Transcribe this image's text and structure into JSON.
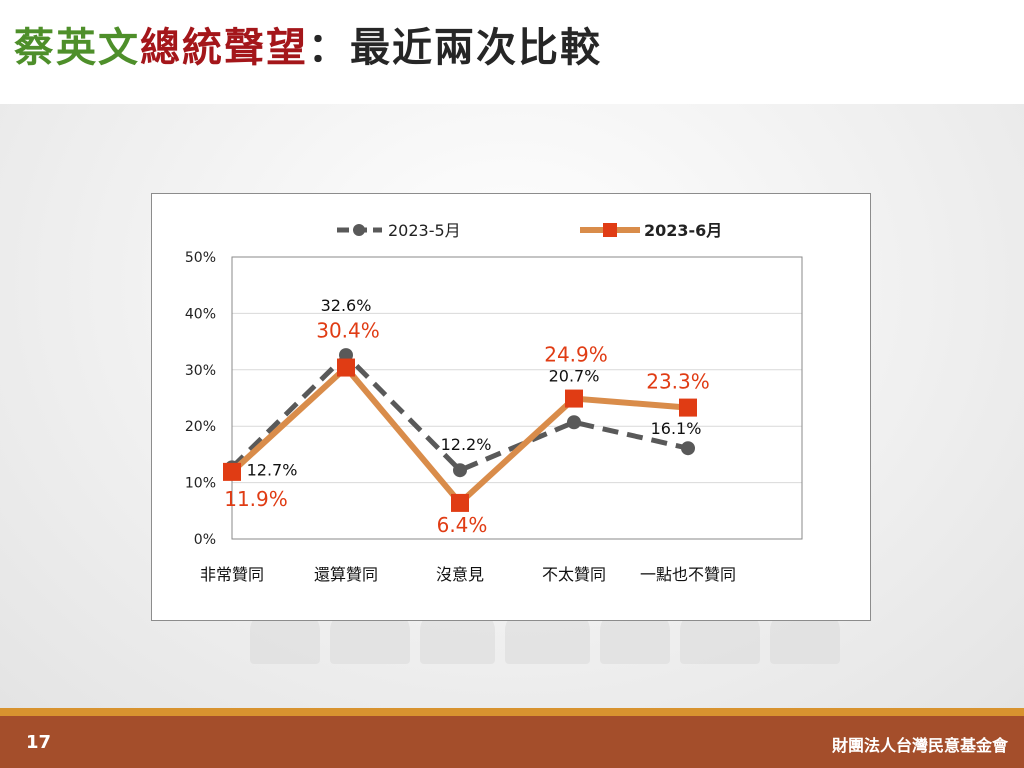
{
  "title": {
    "part1": "蔡英文",
    "part2": "總統聲望",
    "part3": "：最近兩次比較"
  },
  "footer": {
    "page_number": "17",
    "organization": "財團法人台灣民意基金會"
  },
  "colors": {
    "title_green": "#4e8f2a",
    "title_red": "#a4161a",
    "series_may": "#595959",
    "series_june_line": "#d98c4a",
    "series_june_marker": "#e03c14",
    "footer": "#a44e2b"
  },
  "chart_data": {
    "type": "line",
    "categories": [
      "非常贊同",
      "還算贊同",
      "沒意見",
      "不太贊同",
      "一點也不贊同"
    ],
    "y_ticks": [
      "0%",
      "10%",
      "20%",
      "30%",
      "40%",
      "50%"
    ],
    "ylim": [
      0,
      50
    ],
    "grid": true,
    "legend_position": "top",
    "series": [
      {
        "name": "2023-5月",
        "values": [
          12.7,
          32.6,
          12.2,
          20.7,
          16.1
        ],
        "labels": [
          "12.7%",
          "32.6%",
          "12.2%",
          "20.7%",
          "16.1%"
        ],
        "style": "dashed",
        "marker": "circle"
      },
      {
        "name": "2023-6月",
        "values": [
          11.9,
          30.4,
          6.4,
          24.9,
          23.3
        ],
        "labels": [
          "11.9%",
          "30.4%",
          "6.4%",
          "24.9%",
          "23.3%"
        ],
        "style": "solid",
        "marker": "square"
      }
    ]
  }
}
